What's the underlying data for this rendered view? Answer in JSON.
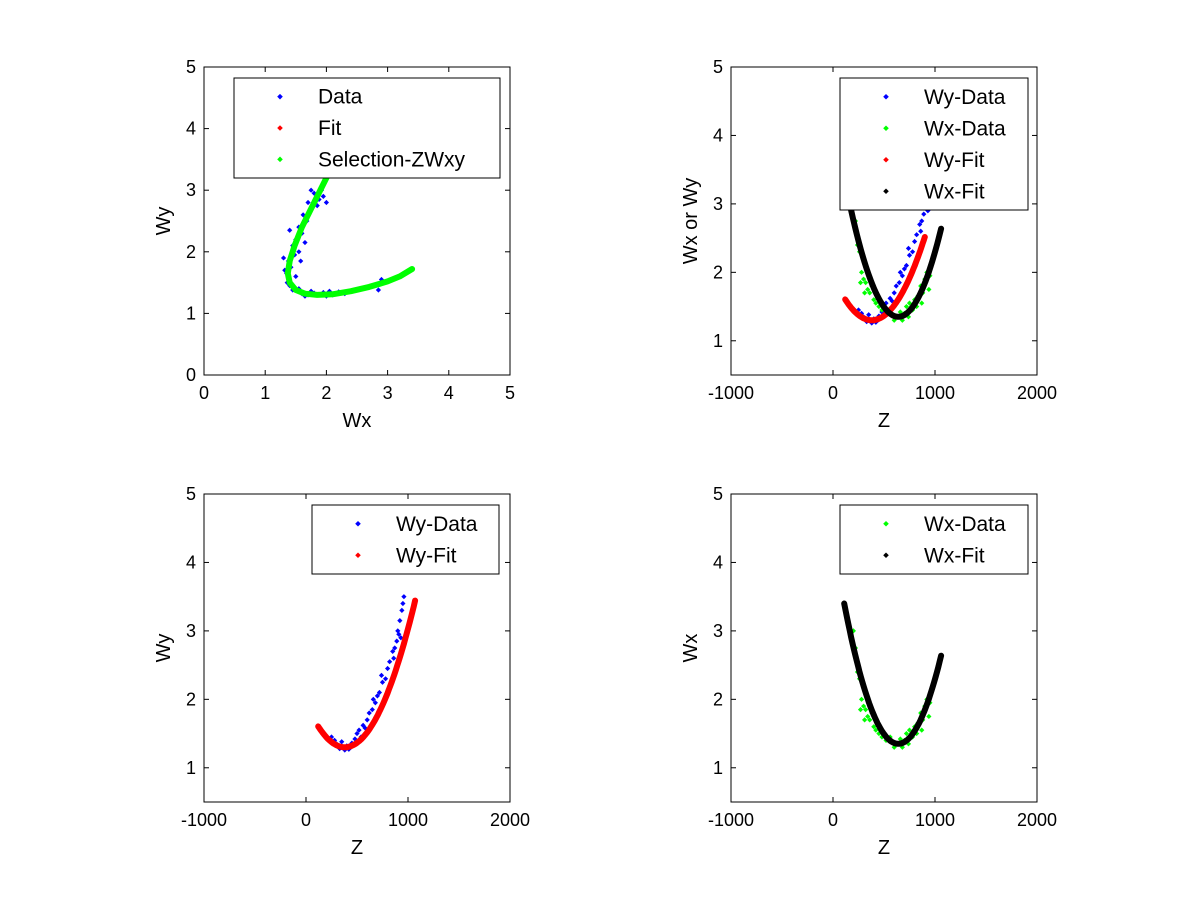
{
  "chart_data": [
    {
      "type": "scatter",
      "id": "p1",
      "title": "",
      "xlabel": "Wx",
      "ylabel": "Wy",
      "xlim": [
        0,
        5
      ],
      "ylim": [
        0,
        5
      ],
      "xticks": [
        0,
        1,
        2,
        3,
        4,
        5
      ],
      "yticks": [
        0,
        1,
        2,
        3,
        4,
        5
      ],
      "legend": {
        "position": "top-right",
        "entries": [
          {
            "label": "Data",
            "color": "#0000ff"
          },
          {
            "label": "Fit",
            "color": "#ff0000"
          },
          {
            "label": "Selection-ZWxy",
            "color": "#00ff00"
          }
        ]
      },
      "series": [
        {
          "name": "Data",
          "color": "#0000ff",
          "points": [
            [
              1.75,
              3.0
            ],
            [
              1.8,
              2.95
            ],
            [
              1.88,
              2.85
            ],
            [
              1.92,
              3.0
            ],
            [
              1.7,
              2.8
            ],
            [
              1.75,
              2.7
            ],
            [
              1.85,
              2.75
            ],
            [
              2.0,
              2.8
            ],
            [
              1.95,
              2.9
            ],
            [
              1.62,
              2.6
            ],
            [
              1.68,
              2.5
            ],
            [
              1.55,
              2.4
            ],
            [
              1.6,
              2.3
            ],
            [
              1.5,
              2.2
            ],
            [
              1.45,
              2.1
            ],
            [
              1.55,
              2.0
            ],
            [
              1.4,
              2.35
            ],
            [
              1.48,
              1.95
            ],
            [
              1.38,
              1.85
            ],
            [
              1.42,
              1.75
            ],
            [
              1.35,
              1.65
            ],
            [
              1.5,
              1.6
            ],
            [
              1.36,
              1.5
            ],
            [
              1.4,
              1.45
            ],
            [
              1.55,
              1.4
            ],
            [
              1.45,
              1.38
            ],
            [
              1.6,
              1.32
            ],
            [
              1.7,
              1.3
            ],
            [
              1.8,
              1.33
            ],
            [
              1.9,
              1.3
            ],
            [
              2.0,
              1.28
            ],
            [
              2.1,
              1.3
            ],
            [
              2.2,
              1.35
            ],
            [
              2.3,
              1.32
            ],
            [
              2.05,
              1.36
            ],
            [
              1.75,
              1.36
            ],
            [
              1.65,
              1.28
            ],
            [
              1.95,
              1.34
            ],
            [
              2.9,
              1.55
            ],
            [
              2.75,
              1.45
            ],
            [
              2.85,
              1.38
            ],
            [
              1.3,
              1.9
            ],
            [
              1.32,
              1.7
            ],
            [
              1.58,
              1.85
            ],
            [
              1.65,
              2.15
            ]
          ]
        },
        {
          "name": "Fit",
          "color": "#ff0000",
          "points": []
        },
        {
          "name": "Selection-ZWxy",
          "color": "#00ff00",
          "curve": "p1_selection"
        }
      ]
    },
    {
      "type": "scatter",
      "id": "p2",
      "title": "",
      "xlabel": "Z",
      "ylabel": "Wx or Wy",
      "xlim": [
        -1000,
        2000
      ],
      "ylim": [
        0.5,
        5
      ],
      "xticks": [
        -1000,
        0,
        1000,
        2000
      ],
      "yticks": [
        1,
        2,
        3,
        4,
        5
      ],
      "legend": {
        "position": "top-right",
        "entries": [
          {
            "label": "Wy-Data",
            "color": "#0000ff"
          },
          {
            "label": "Wx-Data",
            "color": "#00ff00"
          },
          {
            "label": "Wy-Fit",
            "color": "#ff0000"
          },
          {
            "label": "Wx-Fit",
            "color": "#000000"
          }
        ]
      },
      "series": [
        {
          "name": "Wy-Data",
          "color": "#0000ff",
          "scatter_of": "wy"
        },
        {
          "name": "Wx-Data",
          "color": "#00ff00",
          "scatter_of": "wx"
        },
        {
          "name": "Wy-Fit",
          "color": "#ff0000",
          "curve": "wy_fit",
          "z_range": [
            120,
            900
          ]
        },
        {
          "name": "Wx-Fit",
          "color": "#000000",
          "curve": "wx_fit",
          "z_range": [
            170,
            1060
          ]
        }
      ]
    },
    {
      "type": "scatter",
      "id": "p3",
      "title": "",
      "xlabel": "Z",
      "ylabel": "Wy",
      "xlim": [
        -1000,
        2000
      ],
      "ylim": [
        0.5,
        5
      ],
      "xticks": [
        -1000,
        0,
        1000,
        2000
      ],
      "yticks": [
        1,
        2,
        3,
        4,
        5
      ],
      "legend": {
        "position": "top-right",
        "entries": [
          {
            "label": "Wy-Data",
            "color": "#0000ff"
          },
          {
            "label": "Wy-Fit",
            "color": "#ff0000"
          }
        ]
      },
      "series": [
        {
          "name": "Wy-Data",
          "color": "#0000ff",
          "scatter_of": "wy"
        },
        {
          "name": "Wy-Fit",
          "color": "#ff0000",
          "curve": "wy_fit",
          "z_range": [
            120,
            1070
          ]
        }
      ]
    },
    {
      "type": "scatter",
      "id": "p4",
      "title": "",
      "xlabel": "Z",
      "ylabel": "Wx",
      "xlim": [
        -1000,
        2000
      ],
      "ylim": [
        0.5,
        5
      ],
      "xticks": [
        -1000,
        0,
        1000,
        2000
      ],
      "yticks": [
        1,
        2,
        3,
        4,
        5
      ],
      "legend": {
        "position": "top-right",
        "entries": [
          {
            "label": "Wx-Data",
            "color": "#00ff00"
          },
          {
            "label": "Wx-Fit",
            "color": "#000000"
          }
        ]
      },
      "series": [
        {
          "name": "Wx-Data",
          "color": "#00ff00",
          "scatter_of": "wx"
        },
        {
          "name": "Wx-Fit",
          "color": "#000000",
          "curve": "wx_fit",
          "z_range": [
            110,
            1060
          ]
        }
      ]
    }
  ],
  "shared_series": {
    "wy_fit": {
      "model": "parabola",
      "z0": 380,
      "w0": 1.3,
      "k": 4.5e-06
    },
    "wx_fit": {
      "model": "parabola",
      "z0": 640,
      "w0": 1.35,
      "k": 7.3e-06
    },
    "p1_selection": {
      "points": [
        [
          2.05,
          3.3
        ],
        [
          1.9,
          3.0
        ],
        [
          1.75,
          2.7
        ],
        [
          1.6,
          2.4
        ],
        [
          1.48,
          2.1
        ],
        [
          1.4,
          1.85
        ],
        [
          1.37,
          1.65
        ],
        [
          1.4,
          1.5
        ],
        [
          1.5,
          1.38
        ],
        [
          1.65,
          1.32
        ],
        [
          1.85,
          1.3
        ],
        [
          2.1,
          1.31
        ],
        [
          2.4,
          1.36
        ],
        [
          2.7,
          1.43
        ],
        [
          3.0,
          1.52
        ],
        [
          3.2,
          1.6
        ],
        [
          3.4,
          1.72
        ]
      ]
    },
    "wy": {
      "points": [
        [
          330,
          1.28
        ],
        [
          360,
          1.3
        ],
        [
          400,
          1.32
        ],
        [
          420,
          1.27
        ],
        [
          300,
          1.35
        ],
        [
          280,
          1.4
        ],
        [
          450,
          1.36
        ],
        [
          480,
          1.42
        ],
        [
          500,
          1.5
        ],
        [
          520,
          1.55
        ],
        [
          540,
          1.45
        ],
        [
          560,
          1.62
        ],
        [
          600,
          1.7
        ],
        [
          620,
          1.8
        ],
        [
          650,
          1.85
        ],
        [
          680,
          1.95
        ],
        [
          700,
          2.05
        ],
        [
          720,
          2.1
        ],
        [
          750,
          2.25
        ],
        [
          780,
          2.3
        ],
        [
          800,
          2.45
        ],
        [
          820,
          2.55
        ],
        [
          850,
          2.7
        ],
        [
          870,
          2.75
        ],
        [
          890,
          2.85
        ],
        [
          900,
          3.0
        ],
        [
          920,
          3.15
        ],
        [
          940,
          3.3
        ],
        [
          950,
          3.4
        ],
        [
          960,
          3.5
        ],
        [
          250,
          1.45
        ],
        [
          350,
          1.38
        ],
        [
          380,
          1.26
        ],
        [
          440,
          1.3
        ],
        [
          580,
          1.58
        ],
        [
          660,
          2.0
        ],
        [
          740,
          2.35
        ],
        [
          860,
          2.6
        ],
        [
          910,
          2.95
        ],
        [
          930,
          2.9
        ]
      ]
    },
    "wx": {
      "points": [
        [
          200,
          3.0
        ],
        [
          220,
          2.75
        ],
        [
          240,
          2.4
        ],
        [
          260,
          2.3
        ],
        [
          280,
          2.0
        ],
        [
          300,
          1.9
        ],
        [
          320,
          1.85
        ],
        [
          340,
          1.75
        ],
        [
          360,
          1.7
        ],
        [
          380,
          1.8
        ],
        [
          400,
          1.6
        ],
        [
          420,
          1.55
        ],
        [
          450,
          1.5
        ],
        [
          480,
          1.45
        ],
        [
          520,
          1.4
        ],
        [
          560,
          1.45
        ],
        [
          600,
          1.3
        ],
        [
          640,
          1.35
        ],
        [
          680,
          1.3
        ],
        [
          700,
          1.4
        ],
        [
          720,
          1.5
        ],
        [
          750,
          1.55
        ],
        [
          780,
          1.45
        ],
        [
          800,
          1.6
        ],
        [
          830,
          1.65
        ],
        [
          860,
          1.8
        ],
        [
          880,
          1.7
        ],
        [
          900,
          1.9
        ],
        [
          920,
          2.0
        ],
        [
          950,
          1.95
        ],
        [
          230,
          2.6
        ],
        [
          270,
          1.85
        ],
        [
          310,
          1.7
        ],
        [
          440,
          1.62
        ],
        [
          580,
          1.38
        ],
        [
          660,
          1.42
        ],
        [
          740,
          1.35
        ],
        [
          820,
          1.5
        ],
        [
          870,
          1.55
        ],
        [
          940,
          1.75
        ]
      ]
    }
  }
}
